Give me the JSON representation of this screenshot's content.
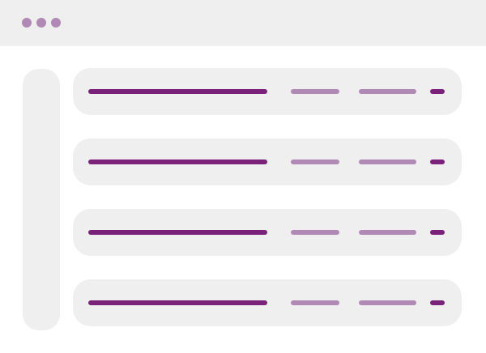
{
  "window": {
    "controls": [
      "window-dot",
      "window-dot",
      "window-dot"
    ]
  },
  "colors": {
    "chrome_bg": "#f0eff0",
    "dot": "#b08ab5",
    "primary_line": "#7a2179",
    "secondary_line": "#b08ab5",
    "accent_line": "#7a2179"
  },
  "rows": [
    {
      "kind": "placeholder-row"
    },
    {
      "kind": "placeholder-row"
    },
    {
      "kind": "placeholder-row"
    },
    {
      "kind": "placeholder-row"
    }
  ]
}
